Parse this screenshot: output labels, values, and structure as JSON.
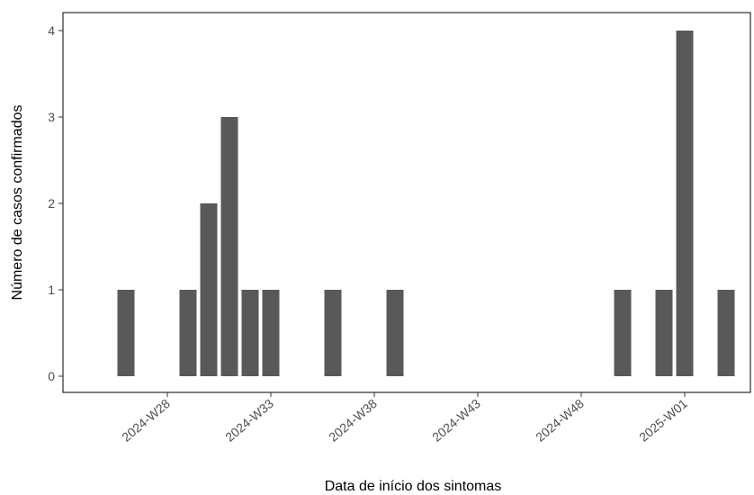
{
  "chart_data": {
    "type": "bar",
    "xlabel": "Data de início dos sintomas",
    "ylabel": "Número de casos confirmados",
    "x_tick_labels": [
      "2024-W28",
      "2024-W33",
      "2024-W38",
      "2024-W43",
      "2024-W48",
      "2025-W01"
    ],
    "y_ticks": [
      0,
      1,
      2,
      3,
      4
    ],
    "ylim": [
      0,
      4
    ],
    "grid": false,
    "bar_color": "#595959",
    "bars": [
      {
        "week": "2024-W26",
        "value": 1
      },
      {
        "week": "2024-W29",
        "value": 1
      },
      {
        "week": "2024-W30",
        "value": 2
      },
      {
        "week": "2024-W31",
        "value": 3
      },
      {
        "week": "2024-W32",
        "value": 1
      },
      {
        "week": "2024-W33",
        "value": 1
      },
      {
        "week": "2024-W36",
        "value": 1
      },
      {
        "week": "2024-W39",
        "value": 1
      },
      {
        "week": "2024-W50",
        "value": 1
      },
      {
        "week": "2024-W52",
        "value": 1
      },
      {
        "week": "2025-W01",
        "value": 4
      },
      {
        "week": "2025-W03",
        "value": 1
      }
    ]
  }
}
